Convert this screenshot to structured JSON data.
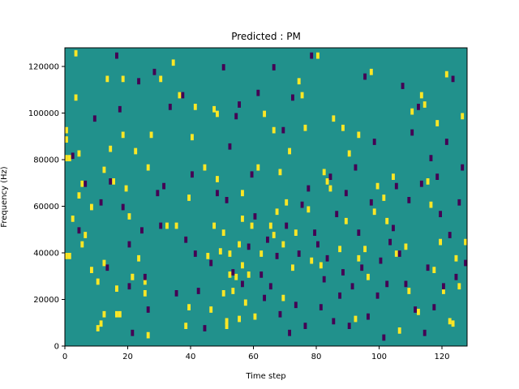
{
  "chart_data": {
    "type": "heatmap",
    "title": "Predicted : PM",
    "xlabel": "Time step",
    "ylabel": "Frequency (Hz)",
    "xlim": [
      0,
      128
    ],
    "ylim": [
      0,
      128000
    ],
    "xticks": [
      0,
      20,
      40,
      60,
      80,
      100,
      120
    ],
    "yticks": [
      0,
      20000,
      40000,
      60000,
      80000,
      100000,
      120000
    ],
    "grid": false,
    "colors": {
      "background_value": "#21918c",
      "high_value": "#fde725",
      "low_value": "#440154"
    },
    "cell_size": {
      "time": 1,
      "frequency": 2000
    },
    "high_cells": [
      [
        0,
        81000
      ],
      [
        1,
        81000
      ],
      [
        0,
        89000
      ],
      [
        0,
        93000
      ],
      [
        0,
        39000
      ],
      [
        1,
        39000
      ],
      [
        3,
        126000
      ],
      [
        3,
        107000
      ],
      [
        2,
        55000
      ],
      [
        4,
        65000
      ],
      [
        4,
        83000
      ],
      [
        5,
        70000
      ],
      [
        5,
        44000
      ],
      [
        6,
        48000
      ],
      [
        8,
        60000
      ],
      [
        8,
        33000
      ],
      [
        10,
        28000
      ],
      [
        10,
        8000
      ],
      [
        11,
        10000
      ],
      [
        12,
        76000
      ],
      [
        12,
        36000
      ],
      [
        12,
        14000
      ],
      [
        13,
        115000
      ],
      [
        14,
        85000
      ],
      [
        15,
        71000
      ],
      [
        16,
        25000
      ],
      [
        16,
        14000
      ],
      [
        17,
        14000
      ],
      [
        18,
        115000
      ],
      [
        18,
        91000
      ],
      [
        19,
        68000
      ],
      [
        20,
        56000
      ],
      [
        21,
        30000
      ],
      [
        21,
        30000
      ],
      [
        22,
        84000
      ],
      [
        23,
        38000
      ],
      [
        25,
        28000
      ],
      [
        25,
        23000
      ],
      [
        26,
        77000
      ],
      [
        26,
        5000
      ],
      [
        27,
        91000
      ],
      [
        30,
        115000
      ],
      [
        32,
        52000
      ],
      [
        34,
        122000
      ],
      [
        35,
        52000
      ],
      [
        36,
        108000
      ],
      [
        38,
        9000
      ],
      [
        39,
        17000
      ],
      [
        39,
        64000
      ],
      [
        40,
        90000
      ],
      [
        41,
        103000
      ],
      [
        44,
        77000
      ],
      [
        45,
        39000
      ],
      [
        46,
        16000
      ],
      [
        47,
        52000
      ],
      [
        47,
        102000
      ],
      [
        48,
        72000
      ],
      [
        48,
        100000
      ],
      [
        49,
        41000
      ],
      [
        50,
        49000
      ],
      [
        50,
        23000
      ],
      [
        51,
        9000
      ],
      [
        51,
        11000
      ],
      [
        52,
        40000
      ],
      [
        52,
        31000
      ],
      [
        53,
        24000
      ],
      [
        54,
        30000
      ],
      [
        55,
        44000
      ],
      [
        55,
        12000
      ],
      [
        56,
        66000
      ],
      [
        56,
        55000
      ],
      [
        56,
        35000
      ],
      [
        57,
        19000
      ],
      [
        58,
        31000
      ],
      [
        59,
        52000
      ],
      [
        60,
        13000
      ],
      [
        61,
        77000
      ],
      [
        62,
        40000
      ],
      [
        63,
        100000
      ],
      [
        65,
        52000
      ],
      [
        66,
        93000
      ],
      [
        66,
        48000
      ],
      [
        67,
        58000
      ],
      [
        68,
        75000
      ],
      [
        69,
        44000
      ],
      [
        69,
        21000
      ],
      [
        70,
        62000
      ],
      [
        71,
        84000
      ],
      [
        72,
        34000
      ],
      [
        73,
        49000
      ],
      [
        74,
        114000
      ],
      [
        75,
        108000
      ],
      [
        76,
        94000
      ],
      [
        77,
        59000
      ],
      [
        78,
        37000
      ],
      [
        80,
        125000
      ],
      [
        81,
        35000
      ],
      [
        82,
        75000
      ],
      [
        83,
        71000
      ],
      [
        84,
        68000
      ],
      [
        85,
        98000
      ],
      [
        87,
        42000
      ],
      [
        88,
        94000
      ],
      [
        89,
        54000
      ],
      [
        90,
        83000
      ],
      [
        92,
        12000
      ],
      [
        93,
        38000
      ],
      [
        93,
        91000
      ],
      [
        95,
        42000
      ],
      [
        96,
        30000
      ],
      [
        97,
        118000
      ],
      [
        98,
        58000
      ],
      [
        99,
        69000
      ],
      [
        101,
        64000
      ],
      [
        102,
        54000
      ],
      [
        104,
        73000
      ],
      [
        105,
        40000
      ],
      [
        106,
        7000
      ],
      [
        108,
        43000
      ],
      [
        109,
        24000
      ],
      [
        110,
        101000
      ],
      [
        112,
        15000
      ],
      [
        113,
        108000
      ],
      [
        114,
        104000
      ],
      [
        115,
        71000
      ],
      [
        116,
        61000
      ],
      [
        117,
        33000
      ],
      [
        118,
        96000
      ],
      [
        119,
        45000
      ],
      [
        120,
        24000
      ],
      [
        121,
        117000
      ],
      [
        122,
        11000
      ],
      [
        123,
        10000
      ],
      [
        124,
        38000
      ],
      [
        125,
        26000
      ],
      [
        126,
        99000
      ],
      [
        127,
        45000
      ]
    ],
    "low_cells": [
      [
        2,
        82000
      ],
      [
        4,
        50000
      ],
      [
        6,
        70000
      ],
      [
        9,
        98000
      ],
      [
        11,
        62000
      ],
      [
        13,
        34000
      ],
      [
        14,
        71000
      ],
      [
        16,
        125000
      ],
      [
        17,
        102000
      ],
      [
        18,
        60000
      ],
      [
        20,
        44000
      ],
      [
        20,
        26000
      ],
      [
        21,
        6000
      ],
      [
        23,
        114000
      ],
      [
        24,
        50000
      ],
      [
        25,
        30000
      ],
      [
        26,
        16000
      ],
      [
        28,
        118000
      ],
      [
        29,
        66000
      ],
      [
        30,
        52000
      ],
      [
        31,
        69000
      ],
      [
        33,
        103000
      ],
      [
        35,
        23000
      ],
      [
        37,
        108000
      ],
      [
        38,
        46000
      ],
      [
        40,
        74000
      ],
      [
        41,
        40000
      ],
      [
        42,
        24000
      ],
      [
        44,
        8000
      ],
      [
        46,
        36000
      ],
      [
        48,
        66000
      ],
      [
        50,
        120000
      ],
      [
        51,
        63000
      ],
      [
        52,
        86000
      ],
      [
        53,
        32000
      ],
      [
        54,
        99000
      ],
      [
        55,
        104000
      ],
      [
        56,
        27000
      ],
      [
        58,
        43000
      ],
      [
        59,
        74000
      ],
      [
        60,
        56000
      ],
      [
        61,
        109000
      ],
      [
        62,
        31000
      ],
      [
        63,
        21000
      ],
      [
        64,
        46000
      ],
      [
        65,
        26000
      ],
      [
        66,
        120000
      ],
      [
        67,
        39000
      ],
      [
        68,
        14000
      ],
      [
        69,
        93000
      ],
      [
        70,
        52000
      ],
      [
        71,
        6000
      ],
      [
        72,
        107000
      ],
      [
        73,
        18000
      ],
      [
        74,
        40000
      ],
      [
        75,
        61000
      ],
      [
        76,
        9000
      ],
      [
        77,
        68000
      ],
      [
        78,
        125000
      ],
      [
        79,
        49000
      ],
      [
        80,
        44000
      ],
      [
        81,
        17000
      ],
      [
        82,
        29000
      ],
      [
        83,
        38000
      ],
      [
        84,
        73000
      ],
      [
        85,
        11000
      ],
      [
        86,
        57000
      ],
      [
        87,
        22000
      ],
      [
        88,
        32000
      ],
      [
        89,
        66000
      ],
      [
        90,
        9000
      ],
      [
        91,
        26000
      ],
      [
        92,
        77000
      ],
      [
        93,
        49000
      ],
      [
        94,
        34000
      ],
      [
        95,
        116000
      ],
      [
        96,
        13000
      ],
      [
        97,
        62000
      ],
      [
        98,
        88000
      ],
      [
        99,
        22000
      ],
      [
        100,
        37000
      ],
      [
        101,
        4000
      ],
      [
        102,
        27000
      ],
      [
        103,
        45000
      ],
      [
        104,
        51000
      ],
      [
        105,
        69000
      ],
      [
        106,
        40000
      ],
      [
        107,
        112000
      ],
      [
        108,
        27000
      ],
      [
        109,
        63000
      ],
      [
        110,
        92000
      ],
      [
        111,
        16000
      ],
      [
        112,
        103000
      ],
      [
        113,
        70000
      ],
      [
        114,
        6000
      ],
      [
        115,
        34000
      ],
      [
        116,
        81000
      ],
      [
        117,
        17000
      ],
      [
        118,
        73000
      ],
      [
        119,
        57000
      ],
      [
        120,
        26000
      ],
      [
        121,
        88000
      ],
      [
        122,
        48000
      ],
      [
        123,
        115000
      ],
      [
        124,
        30000
      ],
      [
        125,
        62000
      ],
      [
        126,
        77000
      ],
      [
        127,
        36000
      ]
    ]
  }
}
